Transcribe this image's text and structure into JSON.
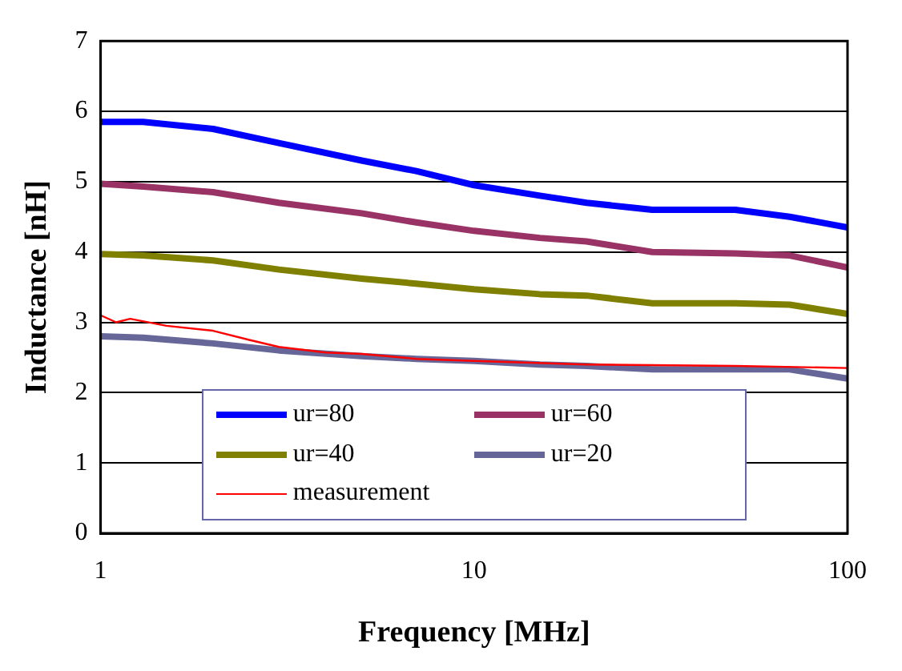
{
  "chart_data": {
    "type": "line",
    "xlabel": "Frequency [MHz]",
    "ylabel": "Inductance [nH]",
    "x": [
      1,
      1.3,
      2,
      3,
      5,
      7,
      10,
      15,
      20,
      30,
      50,
      70,
      100
    ],
    "series": [
      {
        "name": "ur=80",
        "color": "#0000ff",
        "values": [
          5.85,
          5.85,
          5.75,
          5.55,
          5.3,
          5.15,
          4.95,
          4.8,
          4.7,
          4.6,
          4.6,
          4.5,
          4.35
        ]
      },
      {
        "name": "ur=60",
        "color": "#993366",
        "values": [
          4.97,
          4.93,
          4.85,
          4.7,
          4.55,
          4.42,
          4.3,
          4.2,
          4.15,
          4.0,
          3.98,
          3.95,
          3.78
        ]
      },
      {
        "name": "ur=40",
        "color": "#808000",
        "values": [
          3.97,
          3.95,
          3.88,
          3.75,
          3.62,
          3.55,
          3.47,
          3.4,
          3.38,
          3.27,
          3.27,
          3.25,
          3.12
        ]
      },
      {
        "name": "ur=20",
        "color": "#666699",
        "values": [
          2.8,
          2.78,
          2.7,
          2.6,
          2.52,
          2.48,
          2.45,
          2.4,
          2.38,
          2.33,
          2.33,
          2.33,
          2.2
        ]
      },
      {
        "name": "measurement",
        "color": "#ff0000",
        "x": [
          1,
          1.1,
          1.2,
          1.5,
          2,
          2.5,
          3,
          4,
          5,
          7,
          10,
          20,
          50,
          100
        ],
        "values": [
          3.1,
          3.0,
          3.05,
          2.95,
          2.88,
          2.75,
          2.65,
          2.57,
          2.55,
          2.48,
          2.45,
          2.4,
          2.38,
          2.35
        ]
      }
    ],
    "xlim": [
      1,
      100
    ],
    "xticks": [
      1,
      10,
      100
    ],
    "ylim": [
      0,
      7
    ],
    "yticks": [
      0,
      1,
      2,
      3,
      4,
      5,
      6,
      7
    ],
    "log": "x",
    "grid": "y",
    "legend": "bottom",
    "marker": "none",
    "line_style": "solid"
  }
}
